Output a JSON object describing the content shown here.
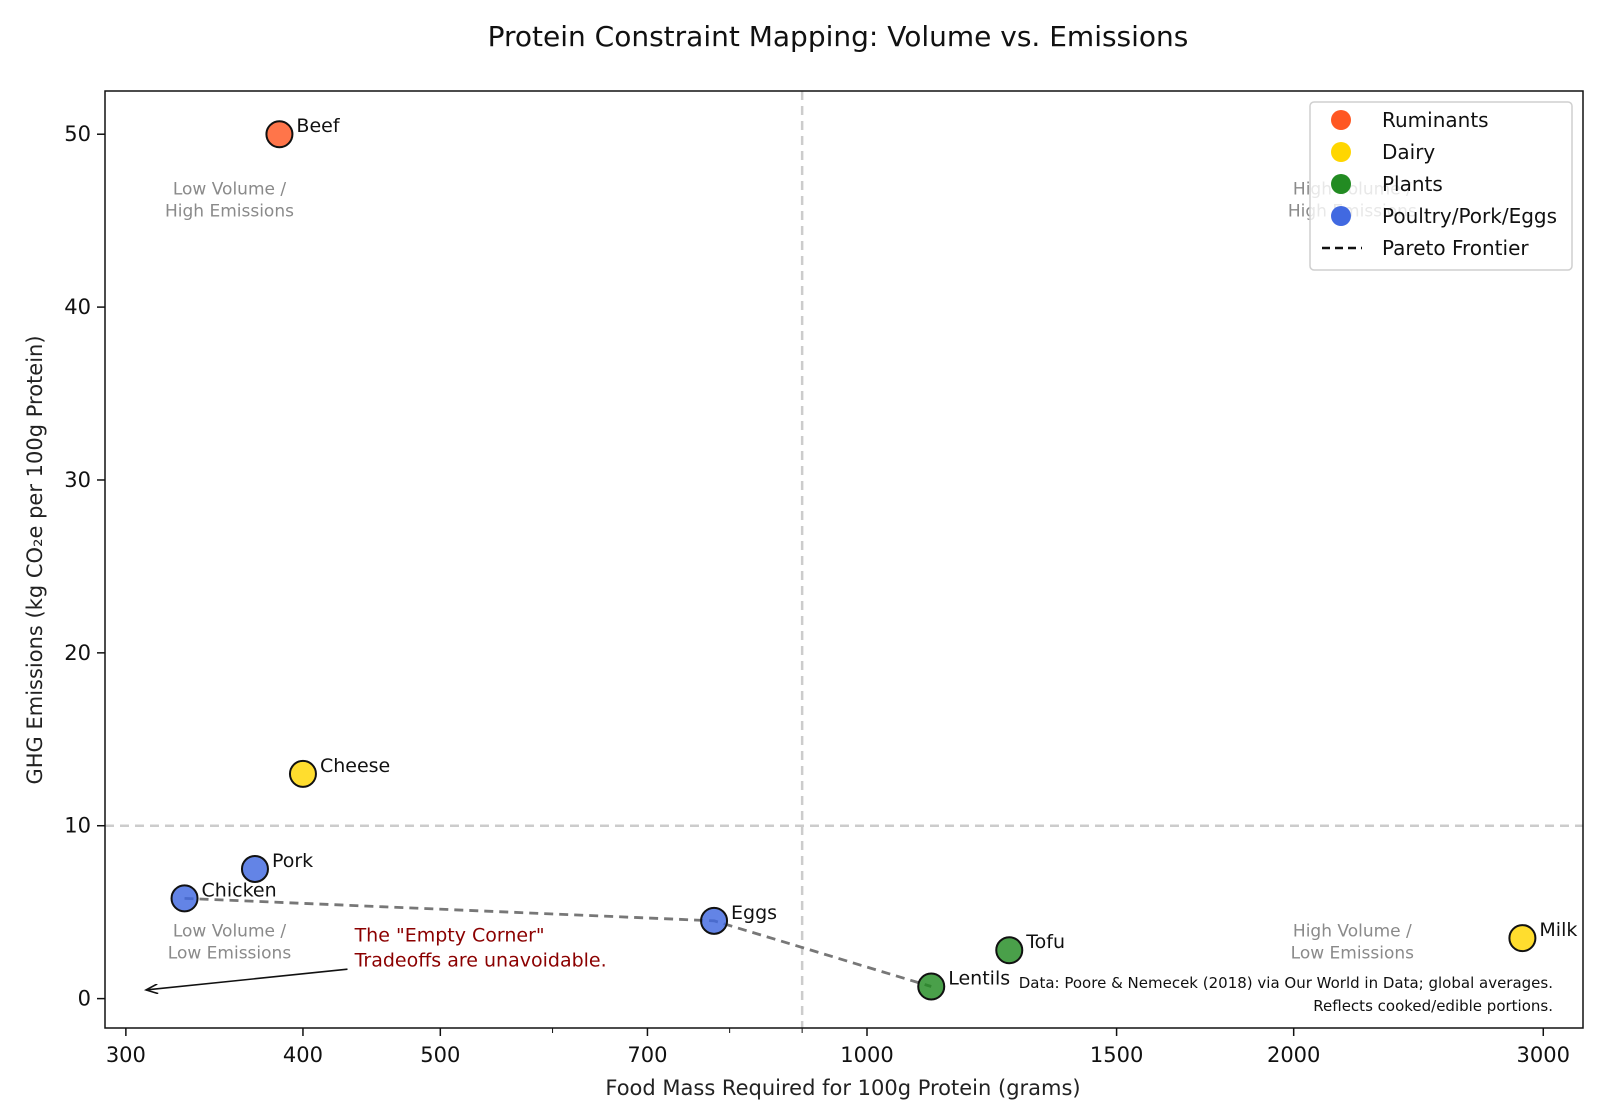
{
  "chart_data": {
    "type": "scatter",
    "title": "Protein Constraint Mapping: Volume vs. Emissions",
    "xlabel": "Food Mass Required for 100g Protein (grams)",
    "ylabel": "GHG Emissions (kg CO₂e per 100g Protein)",
    "x_scale": "log",
    "xlim": [
      290,
      3200
    ],
    "ylim": [
      -1.7,
      52.5
    ],
    "x_ticks": [
      300,
      400,
      500,
      700,
      1000,
      1500,
      2000,
      3000
    ],
    "x_tick_labels": [
      "300",
      "400",
      "500",
      "700",
      "1000",
      "1500",
      "2000",
      "3000"
    ],
    "x_minor_ticks": [
      600,
      800,
      900
    ],
    "y_ticks": [
      0,
      10,
      20,
      30,
      40,
      50
    ],
    "y_tick_labels": [
      "0",
      "10",
      "20",
      "30",
      "40",
      "50"
    ],
    "grid": false,
    "reference_lines": {
      "x": 900,
      "y": 10,
      "style": "dashed",
      "color": "#cccccc"
    },
    "points": [
      {
        "label": "Beef",
        "x": 385,
        "y": 50,
        "category": "Ruminants",
        "color": "#FF5722"
      },
      {
        "label": "Cheese",
        "x": 400,
        "y": 13,
        "category": "Dairy",
        "color": "#FFD600"
      },
      {
        "label": "Pork",
        "x": 370,
        "y": 7.5,
        "category": "Poultry/Pork/Eggs",
        "color": "#4169E1"
      },
      {
        "label": "Chicken",
        "x": 330,
        "y": 5.8,
        "category": "Poultry/Pork/Eggs",
        "color": "#4169E1"
      },
      {
        "label": "Eggs",
        "x": 780,
        "y": 4.5,
        "category": "Poultry/Pork/Eggs",
        "color": "#4169E1"
      },
      {
        "label": "Lentils",
        "x": 1110,
        "y": 0.7,
        "category": "Plants",
        "color": "#228B22"
      },
      {
        "label": "Tofu",
        "x": 1260,
        "y": 2.8,
        "category": "Plants",
        "color": "#228B22"
      },
      {
        "label": "Milk",
        "x": 2900,
        "y": 3.5,
        "category": "Dairy",
        "color": "#FFD600"
      }
    ],
    "pareto_frontier": {
      "name": "Pareto Frontier",
      "x": [
        330,
        780,
        1110
      ],
      "y": [
        5.8,
        4.5,
        0.7
      ],
      "color": "#777777"
    },
    "legend": {
      "placement": "top-right",
      "entries": [
        {
          "label": "Ruminants",
          "color": "#FF5722",
          "kind": "marker"
        },
        {
          "label": "Dairy",
          "color": "#FFD600",
          "kind": "marker"
        },
        {
          "label": "Plants",
          "color": "#228B22",
          "kind": "marker"
        },
        {
          "label": "Poultry/Pork/Eggs",
          "color": "#4169E1",
          "kind": "marker"
        },
        {
          "label": "Pareto Frontier",
          "color": "#111111",
          "kind": "dashed-line"
        }
      ]
    },
    "quadrant_labels": [
      {
        "text": [
          "Low Volume /",
          "High Emissions"
        ],
        "x": 355,
        "y": 46.5
      },
      {
        "text": [
          "High Volume /",
          "High Emissions"
        ],
        "x": 2200,
        "y": 46.5
      },
      {
        "text": [
          "Low Volume /",
          "Low Emissions"
        ],
        "x": 355,
        "y": 3.6
      },
      {
        "text": [
          "High Volume /",
          "Low Emissions"
        ],
        "x": 2200,
        "y": 3.6
      }
    ],
    "annotation": {
      "lines": [
        "The \"Empty Corner\"",
        "Tradeoffs are unavoidable."
      ],
      "text_x": 435,
      "text_y": 3.3,
      "arrow_from_x": 430,
      "arrow_from_y": 1.7,
      "arrow_to_x": 310,
      "arrow_to_y": 0.5,
      "color": "#8b0000"
    },
    "source_note": [
      "Data: Poore & Nemecek (2018) via Our World in Data; global averages.",
      "Reflects cooked/edible portions."
    ],
    "colors": {
      "Ruminants": "#FF5722",
      "Dairy": "#FFD600",
      "Plants": "#228B22",
      "Poultry/Pork/Eggs": "#4169E1"
    }
  }
}
